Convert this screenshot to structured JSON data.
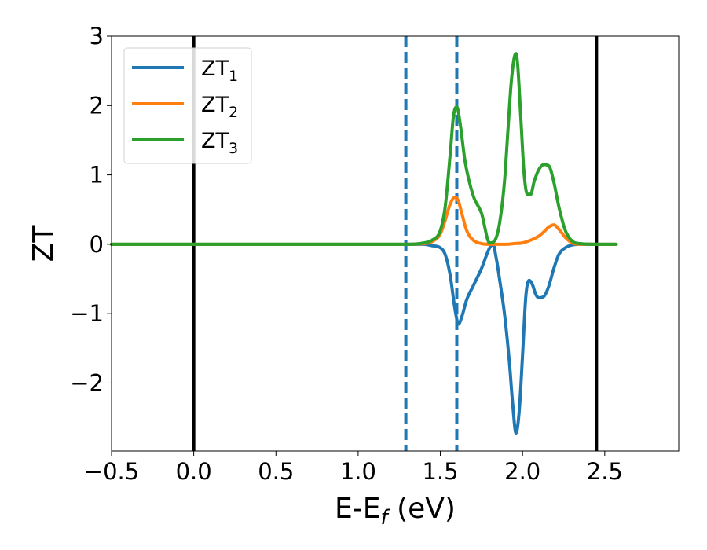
{
  "chart_data": {
    "type": "line",
    "xlabel": {
      "main": "E-E",
      "sub": "f",
      "unit": " (eV)"
    },
    "ylabel": "ZT",
    "xlim": [
      -0.5,
      2.95
    ],
    "ylim": [
      -2.98,
      3.0
    ],
    "xticks": [
      -0.5,
      0.0,
      0.5,
      1.0,
      1.5,
      2.0,
      2.5
    ],
    "xtick_labels": [
      "−0.5",
      "0.0",
      "0.5",
      "1.0",
      "1.5",
      "2.0",
      "2.5"
    ],
    "yticks": [
      -2,
      -1,
      0,
      1,
      2,
      3
    ],
    "ytick_labels": [
      "−2",
      "−1",
      "0",
      "1",
      "2",
      "3"
    ],
    "grid": false,
    "legend_position": "top-left",
    "vlines_solid": [
      0.0,
      2.45
    ],
    "vlines_dashed": [
      1.29,
      1.6
    ],
    "vline_solid_color": "#000000",
    "vline_dashed_color": "#1f77b4",
    "series": [
      {
        "name": "ZT1",
        "name_main": "ZT",
        "name_sub": "1",
        "color": "#1f77b4",
        "x": [
          -0.5,
          1.3,
          1.4,
          1.45,
          1.5,
          1.53,
          1.56,
          1.59,
          1.61,
          1.63,
          1.66,
          1.7,
          1.75,
          1.8,
          1.82,
          1.84,
          1.86,
          1.89,
          1.92,
          1.94,
          1.96,
          1.98,
          2.0,
          2.02,
          2.04,
          2.06,
          2.08,
          2.1,
          2.13,
          2.16,
          2.19,
          2.22,
          2.26,
          2.3,
          2.35,
          2.45,
          2.57
        ],
        "y": [
          0,
          0,
          0,
          -0.02,
          -0.05,
          -0.15,
          -0.45,
          -0.95,
          -1.15,
          -1.05,
          -0.8,
          -0.6,
          -0.35,
          -0.05,
          0.0,
          -0.2,
          -0.5,
          -1.0,
          -1.7,
          -2.3,
          -2.72,
          -2.4,
          -1.6,
          -0.75,
          -0.52,
          -0.58,
          -0.72,
          -0.77,
          -0.75,
          -0.6,
          -0.35,
          -0.15,
          -0.05,
          -0.01,
          0,
          0,
          0
        ]
      },
      {
        "name": "ZT2",
        "name_main": "ZT",
        "name_sub": "2",
        "color": "#ff7f0e",
        "x": [
          -0.5,
          1.3,
          1.4,
          1.45,
          1.5,
          1.53,
          1.56,
          1.59,
          1.61,
          1.63,
          1.66,
          1.7,
          1.75,
          1.8,
          1.85,
          1.9,
          1.95,
          2.0,
          2.05,
          2.1,
          2.13,
          2.16,
          2.19,
          2.22,
          2.26,
          2.3,
          2.35,
          2.45,
          2.57
        ],
        "y": [
          0,
          0,
          0.01,
          0.04,
          0.15,
          0.35,
          0.58,
          0.68,
          0.62,
          0.45,
          0.2,
          0.06,
          0.01,
          0.0,
          0.0,
          0.0,
          0.01,
          0.02,
          0.06,
          0.12,
          0.18,
          0.25,
          0.28,
          0.22,
          0.1,
          0.02,
          0.0,
          0.0,
          0.0
        ]
      },
      {
        "name": "ZT3",
        "name_main": "ZT",
        "name_sub": "3",
        "color": "#2ca02c",
        "x": [
          -0.5,
          1.3,
          1.4,
          1.45,
          1.5,
          1.53,
          1.56,
          1.58,
          1.6,
          1.62,
          1.65,
          1.7,
          1.75,
          1.8,
          1.83,
          1.86,
          1.89,
          1.91,
          1.93,
          1.95,
          1.96,
          1.97,
          1.99,
          2.01,
          2.03,
          2.05,
          2.07,
          2.1,
          2.13,
          2.16,
          2.19,
          2.22,
          2.26,
          2.3,
          2.35,
          2.45,
          2.57
        ],
        "y": [
          0,
          0,
          0.02,
          0.06,
          0.2,
          0.55,
          1.3,
          1.85,
          1.98,
          1.75,
          1.2,
          0.7,
          0.45,
          0.02,
          0.05,
          0.3,
          0.9,
          1.6,
          2.3,
          2.7,
          2.75,
          2.6,
          1.8,
          1.0,
          0.72,
          0.72,
          0.9,
          1.08,
          1.15,
          1.13,
          0.9,
          0.55,
          0.2,
          0.05,
          0.01,
          0.0,
          0.0
        ]
      }
    ]
  }
}
